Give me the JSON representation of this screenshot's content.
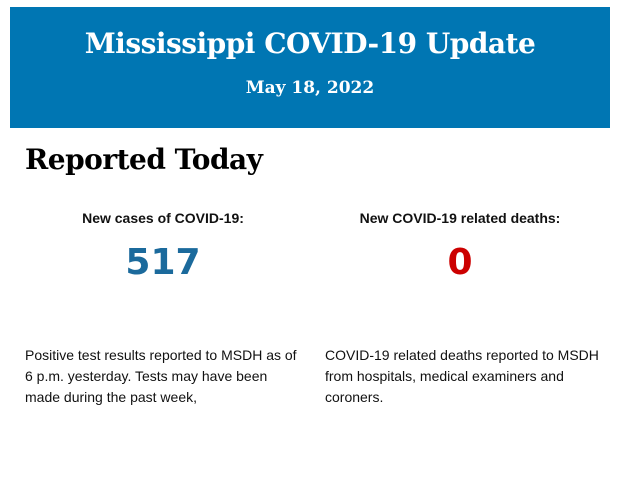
{
  "header": {
    "title": "Mississippi COVID-19 Update",
    "date": "May 18, 2022",
    "background_color": "#0076b3"
  },
  "section_title": "Reported Today",
  "cases": {
    "label": "New cases of COVID-19:",
    "value": "517",
    "color": "#1b6a9c",
    "description": "Positive test results reported to MSDH as of 6 p.m. yesterday. Tests may have been made during the past week,"
  },
  "deaths": {
    "label": "New COVID-19 related deaths:",
    "value": "0",
    "color": "#cc0000",
    "description": "COVID-19 related deaths reported to MSDH from hospitals, medical examiners and coroners."
  }
}
